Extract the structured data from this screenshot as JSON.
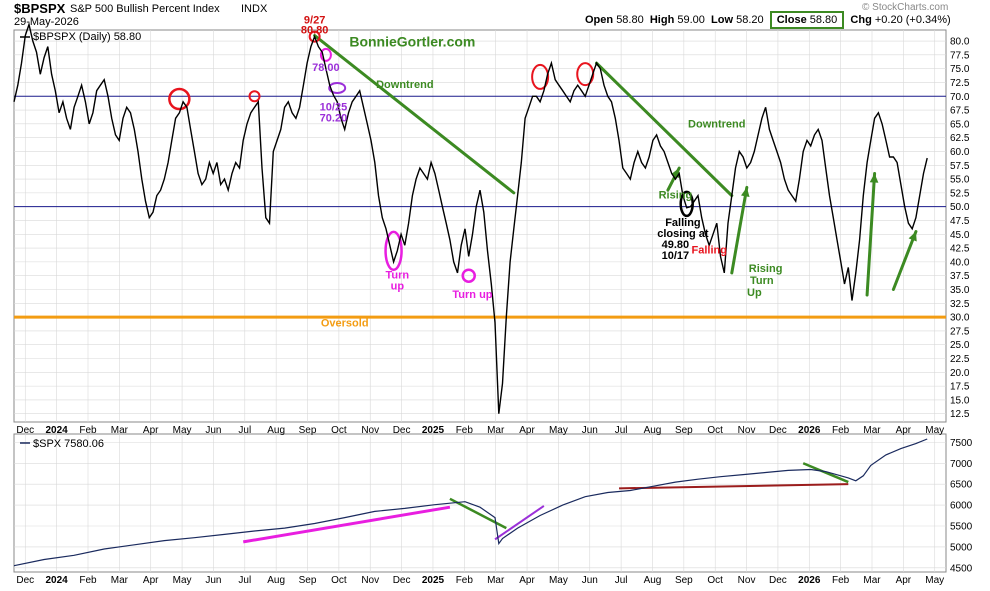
{
  "header": {
    "symbol": "$BPSPX",
    "name": "S&P 500 Bullish Percent Index",
    "exchange": "INDX",
    "date": "29-May-2026",
    "watermark": "© StockCharts.com",
    "open_label": "Open",
    "open": "58.80",
    "high_label": "High",
    "high": "59.00",
    "low_label": "Low",
    "low": "58.20",
    "close_label": "Close",
    "close": "58.80",
    "chg_label": "Chg",
    "chg": "+0.20 (+0.34%)"
  },
  "colors": {
    "line": "#000000",
    "grid": "#d9d9d9",
    "ref_blue": "#1a1a8c",
    "oversold": "#f39c12",
    "trend_green": "#3c8a22",
    "circle_red": "#e8141e",
    "circle_magenta": "#e81ee0",
    "circle_purple": "#9b30d9",
    "spx_line": "#1a2a5e",
    "spx_red": "#9b1c1c"
  },
  "chart_data": [
    {
      "type": "line",
      "legend": "$BPSPX (Daily) 58.80",
      "ylim": [
        11,
        82
      ],
      "yticks": [
        12.5,
        15,
        17.5,
        20,
        22.5,
        25,
        27.5,
        30,
        32.5,
        35,
        37.5,
        40,
        42.5,
        45,
        47.5,
        50,
        52.5,
        55,
        57.5,
        60,
        62.5,
        65,
        67.5,
        70,
        72.5,
        75,
        77.5,
        80
      ],
      "x_labels": [
        "Dec",
        "2024",
        "Feb",
        "Mar",
        "Apr",
        "May",
        "Jun",
        "Jul",
        "Aug",
        "Sep",
        "Oct",
        "Nov",
        "Dec",
        "2025",
        "Feb",
        "Mar",
        "Apr",
        "May",
        "Jun",
        "Jul",
        "Aug",
        "Sep",
        "Oct",
        "Nov",
        "Dec",
        "2026",
        "Feb",
        "Mar",
        "Apr",
        "May"
      ],
      "reference_lines": [
        70,
        50,
        30
      ],
      "points": [
        [
          0,
          69
        ],
        [
          1,
          72
        ],
        [
          2,
          76
        ],
        [
          3,
          81
        ],
        [
          4,
          83
        ],
        [
          5,
          80
        ],
        [
          6,
          78
        ],
        [
          7,
          74
        ],
        [
          8,
          77
        ],
        [
          9,
          79
        ],
        [
          10,
          74
        ],
        [
          11,
          71
        ],
        [
          12,
          67
        ],
        [
          13,
          69
        ],
        [
          14,
          66
        ],
        [
          15,
          64
        ],
        [
          16,
          68
        ],
        [
          17,
          70
        ],
        [
          18,
          72
        ],
        [
          19,
          69
        ],
        [
          20,
          65
        ],
        [
          21,
          67
        ],
        [
          22,
          71
        ],
        [
          23,
          72
        ],
        [
          24,
          73
        ],
        [
          25,
          70
        ],
        [
          26,
          66
        ],
        [
          27,
          63
        ],
        [
          28,
          62
        ],
        [
          29,
          66
        ],
        [
          30,
          68
        ],
        [
          31,
          67
        ],
        [
          32,
          64
        ],
        [
          33,
          60
        ],
        [
          34,
          55
        ],
        [
          35,
          51
        ],
        [
          36,
          48
        ],
        [
          37,
          49
        ],
        [
          38,
          52
        ],
        [
          39,
          53
        ],
        [
          40,
          55
        ],
        [
          41,
          58
        ],
        [
          42,
          62
        ],
        [
          43,
          66
        ],
        [
          44,
          67
        ],
        [
          45,
          69
        ],
        [
          46,
          68
        ],
        [
          47,
          64
        ],
        [
          48,
          60
        ],
        [
          49,
          56
        ],
        [
          50,
          54
        ],
        [
          51,
          55
        ],
        [
          52,
          58
        ],
        [
          53,
          56
        ],
        [
          54,
          58
        ],
        [
          55,
          54
        ],
        [
          56,
          55
        ],
        [
          57,
          53
        ],
        [
          58,
          56
        ],
        [
          59,
          58
        ],
        [
          60,
          57
        ],
        [
          61,
          62
        ],
        [
          62,
          65
        ],
        [
          63,
          67
        ],
        [
          64,
          68
        ],
        [
          65,
          69
        ],
        [
          66,
          57
        ],
        [
          67,
          48
        ],
        [
          68,
          47
        ],
        [
          69,
          60
        ],
        [
          70,
          62
        ],
        [
          71,
          64
        ],
        [
          72,
          68
        ],
        [
          73,
          69
        ],
        [
          74,
          67
        ],
        [
          75,
          66
        ],
        [
          76,
          68
        ],
        [
          77,
          72
        ],
        [
          78,
          76
        ],
        [
          79,
          79
        ],
        [
          80,
          80.8
        ],
        [
          81,
          79
        ],
        [
          82,
          78
        ],
        [
          83,
          75
        ],
        [
          84,
          72
        ],
        [
          85,
          70.2
        ],
        [
          86,
          69
        ],
        [
          87,
          66
        ],
        [
          88,
          64
        ],
        [
          89,
          67
        ],
        [
          90,
          69
        ],
        [
          91,
          70
        ],
        [
          92,
          71
        ],
        [
          93,
          68
        ],
        [
          94,
          65
        ],
        [
          95,
          62
        ],
        [
          96,
          58
        ],
        [
          97,
          52
        ],
        [
          98,
          48
        ],
        [
          99,
          46
        ],
        [
          100,
          43
        ],
        [
          101,
          40
        ],
        [
          102,
          42
        ],
        [
          103,
          45
        ],
        [
          104,
          43
        ],
        [
          105,
          47
        ],
        [
          106,
          52
        ],
        [
          107,
          55
        ],
        [
          108,
          57
        ],
        [
          109,
          56
        ],
        [
          110,
          55
        ],
        [
          111,
          58
        ],
        [
          112,
          56
        ],
        [
          113,
          53
        ],
        [
          114,
          50
        ],
        [
          115,
          47
        ],
        [
          116,
          44
        ],
        [
          117,
          40
        ],
        [
          118,
          38
        ],
        [
          119,
          43
        ],
        [
          120,
          46
        ],
        [
          121,
          41
        ],
        [
          122,
          45
        ],
        [
          123,
          50
        ],
        [
          124,
          53
        ],
        [
          125,
          49
        ],
        [
          126,
          42
        ],
        [
          127,
          36
        ],
        [
          128,
          29
        ],
        [
          129,
          12.5
        ],
        [
          130,
          18
        ],
        [
          131,
          30
        ],
        [
          132,
          40
        ],
        [
          133,
          46
        ],
        [
          134,
          52
        ],
        [
          135,
          58
        ],
        [
          136,
          66
        ],
        [
          137,
          68
        ],
        [
          138,
          70
        ],
        [
          139,
          70
        ],
        [
          140,
          69
        ],
        [
          141,
          71
        ],
        [
          142,
          74
        ],
        [
          143,
          76
        ],
        [
          144,
          73
        ],
        [
          145,
          72
        ],
        [
          146,
          71
        ],
        [
          147,
          70
        ],
        [
          148,
          69
        ],
        [
          149,
          71
        ],
        [
          150,
          72
        ],
        [
          151,
          71
        ],
        [
          152,
          70
        ],
        [
          153,
          72
        ],
        [
          154,
          74
        ],
        [
          155,
          76
        ],
        [
          156,
          75
        ],
        [
          157,
          72
        ],
        [
          158,
          70
        ],
        [
          159,
          69
        ],
        [
          160,
          66
        ],
        [
          161,
          62
        ],
        [
          162,
          57
        ],
        [
          163,
          56
        ],
        [
          164,
          55
        ],
        [
          165,
          58
        ],
        [
          166,
          60
        ],
        [
          167,
          58
        ],
        [
          168,
          57
        ],
        [
          169,
          59
        ],
        [
          170,
          62
        ],
        [
          171,
          63
        ],
        [
          172,
          61
        ],
        [
          173,
          60
        ],
        [
          174,
          58
        ],
        [
          175,
          56
        ],
        [
          176,
          55
        ],
        [
          177,
          56
        ],
        [
          178,
          52
        ],
        [
          179,
          49.8
        ],
        [
          180,
          50
        ],
        [
          181,
          51
        ],
        [
          182,
          52
        ],
        [
          183,
          48
        ],
        [
          184,
          45
        ],
        [
          185,
          43
        ],
        [
          186,
          45
        ],
        [
          187,
          47
        ],
        [
          188,
          41
        ],
        [
          189,
          38
        ],
        [
          190,
          47
        ],
        [
          191,
          52
        ],
        [
          192,
          57
        ],
        [
          193,
          60
        ],
        [
          194,
          59
        ],
        [
          195,
          57
        ],
        [
          196,
          58
        ],
        [
          197,
          60
        ],
        [
          198,
          63
        ],
        [
          199,
          66
        ],
        [
          200,
          68
        ],
        [
          201,
          64
        ],
        [
          202,
          62
        ],
        [
          203,
          60
        ],
        [
          204,
          58
        ],
        [
          205,
          55
        ],
        [
          206,
          53
        ],
        [
          207,
          52
        ],
        [
          208,
          51
        ],
        [
          209,
          55
        ],
        [
          210,
          60
        ],
        [
          211,
          62
        ],
        [
          212,
          61
        ],
        [
          213,
          63
        ],
        [
          214,
          64
        ],
        [
          215,
          62
        ],
        [
          216,
          57
        ],
        [
          217,
          52
        ],
        [
          218,
          48
        ],
        [
          219,
          44
        ],
        [
          220,
          40
        ],
        [
          221,
          36
        ],
        [
          222,
          39
        ],
        [
          223,
          33
        ],
        [
          224,
          38
        ],
        [
          225,
          44
        ],
        [
          226,
          52
        ],
        [
          227,
          58
        ],
        [
          228,
          62
        ],
        [
          229,
          66
        ],
        [
          230,
          67
        ],
        [
          231,
          65
        ],
        [
          232,
          62
        ],
        [
          233,
          59
        ],
        [
          234,
          59
        ],
        [
          235,
          58
        ],
        [
          236,
          54
        ],
        [
          237,
          50
        ],
        [
          238,
          47
        ],
        [
          239,
          46
        ],
        [
          240,
          48
        ],
        [
          241,
          52
        ],
        [
          242,
          56
        ],
        [
          243,
          58.8
        ]
      ],
      "annotations": [
        {
          "text": "9/27",
          "color": "#d31111",
          "x": 80,
          "y": 83.2
        },
        {
          "text": "80.80",
          "color": "#d31111",
          "x": 80,
          "y": 81.4
        },
        {
          "text": "78.00",
          "color": "#9b30d9",
          "x": 83,
          "y": 74.6
        },
        {
          "text": "10/25",
          "color": "#9b30d9",
          "x": 85,
          "y": 67.4
        },
        {
          "text": "70.20",
          "color": "#9b30d9",
          "x": 85,
          "y": 65.4
        },
        {
          "text": "BonnieGortler.com",
          "color": "#3c8a22",
          "x": 106,
          "y": 79
        },
        {
          "text": "Downtrend",
          "color": "#3c8a22",
          "x": 104,
          "y": 71.5
        },
        {
          "text": "Downtrend",
          "color": "#3c8a22",
          "x": 187,
          "y": 64.3
        },
        {
          "text": "Turn",
          "color": "#e81ee0",
          "x": 102,
          "y": 37
        },
        {
          "text": "up",
          "color": "#e81ee0",
          "x": 102,
          "y": 35
        },
        {
          "text": "Turn up",
          "color": "#e81ee0",
          "x": 122,
          "y": 33.5
        },
        {
          "text": "Rising",
          "color": "#3c8a22",
          "x": 176,
          "y": 51.5
        },
        {
          "text": "Falling",
          "color": "#000000",
          "x": 178,
          "y": 46.5
        },
        {
          "text": "closing at",
          "color": "#000000",
          "x": 178,
          "y": 44.5
        },
        {
          "text": "49.80",
          "color": "#000000",
          "x": 176,
          "y": 42.5
        },
        {
          "text": "10/17",
          "color": "#000000",
          "x": 176,
          "y": 40.5
        },
        {
          "text": "Falling",
          "color": "#e8141e",
          "x": 185,
          "y": 41.5
        },
        {
          "text": "Rising",
          "color": "#3c8a22",
          "x": 200,
          "y": 38.2
        },
        {
          "text": "Turn",
          "color": "#3c8a22",
          "x": 199,
          "y": 36
        },
        {
          "text": "Up",
          "color": "#3c8a22",
          "x": 197,
          "y": 33.8
        },
        {
          "text": "Oversold",
          "color": "#f39c12",
          "x": 88,
          "y": 28.3
        }
      ]
    },
    {
      "type": "line",
      "legend": "$SPX 7580.06",
      "ylim": [
        4400,
        7700
      ],
      "yticks": [
        4500,
        5000,
        5500,
        6000,
        6500,
        7000,
        7500
      ],
      "x_labels": [
        "Dec",
        "2024",
        "Feb",
        "Mar",
        "Apr",
        "May",
        "Jun",
        "Jul",
        "Aug",
        "Sep",
        "Oct",
        "Nov",
        "Dec",
        "2025",
        "Feb",
        "Mar",
        "Apr",
        "May",
        "Jun",
        "Jul",
        "Aug",
        "Sep",
        "Oct",
        "Nov",
        "Dec",
        "2026",
        "Feb",
        "Mar",
        "Apr",
        "May"
      ],
      "points": [
        [
          0,
          4550
        ],
        [
          8,
          4700
        ],
        [
          16,
          4800
        ],
        [
          24,
          4950
        ],
        [
          32,
          5050
        ],
        [
          40,
          5150
        ],
        [
          48,
          5220
        ],
        [
          56,
          5300
        ],
        [
          64,
          5380
        ],
        [
          72,
          5450
        ],
        [
          80,
          5560
        ],
        [
          88,
          5700
        ],
        [
          96,
          5850
        ],
        [
          104,
          5920
        ],
        [
          112,
          6010
        ],
        [
          120,
          6080
        ],
        [
          124,
          5950
        ],
        [
          128,
          5700
        ],
        [
          129,
          5080
        ],
        [
          130,
          5200
        ],
        [
          134,
          5450
        ],
        [
          140,
          5750
        ],
        [
          146,
          6000
        ],
        [
          152,
          6200
        ],
        [
          158,
          6300
        ],
        [
          164,
          6350
        ],
        [
          170,
          6450
        ],
        [
          176,
          6550
        ],
        [
          182,
          6620
        ],
        [
          188,
          6680
        ],
        [
          194,
          6730
        ],
        [
          200,
          6780
        ],
        [
          206,
          6830
        ],
        [
          212,
          6850
        ],
        [
          216,
          6800
        ],
        [
          220,
          6700
        ],
        [
          222,
          6650
        ],
        [
          224,
          6580
        ],
        [
          226,
          6700
        ],
        [
          228,
          6950
        ],
        [
          232,
          7200
        ],
        [
          236,
          7350
        ],
        [
          240,
          7470
        ],
        [
          243,
          7580
        ]
      ],
      "annotations": []
    }
  ]
}
